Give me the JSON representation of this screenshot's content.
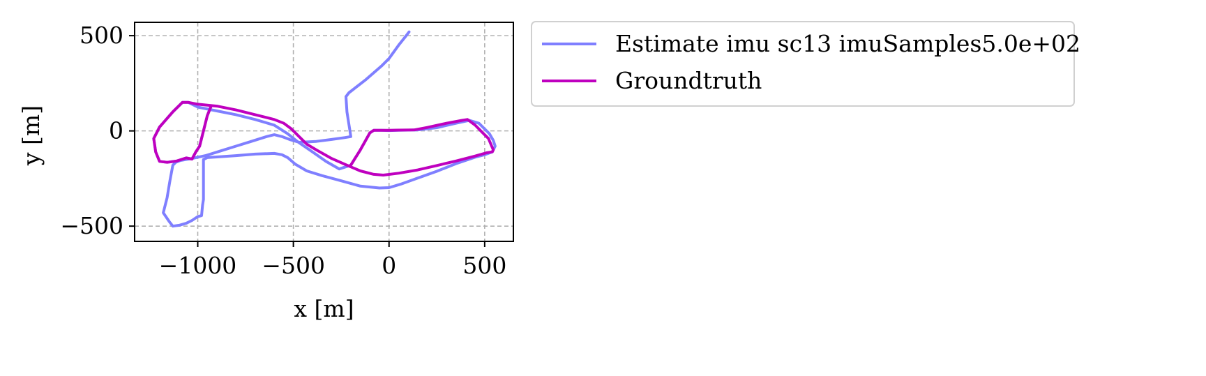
{
  "chart_data": {
    "type": "line",
    "title": "",
    "xlabel": "x [m]",
    "ylabel": "y [m]",
    "xlim": [
      -1330,
      650
    ],
    "ylim": [
      -580,
      570
    ],
    "xticks": [
      -1000,
      -500,
      0,
      500
    ],
    "xtick_labels": [
      "−1000",
      "−500",
      "0",
      "500"
    ],
    "yticks": [
      -500,
      0,
      500
    ],
    "ytick_labels": [
      "−500",
      "0",
      "500"
    ],
    "grid": true,
    "legend_position": "outside-top-right",
    "series": [
      {
        "name": "Estimate imu sc13 imuSamples5.0e+02",
        "color": "#7f7fff",
        "points": [
          [
            105,
            520
          ],
          [
            90,
            500
          ],
          [
            50,
            450
          ],
          [
            0,
            380
          ],
          [
            -40,
            340
          ],
          [
            -120,
            270
          ],
          [
            -210,
            200
          ],
          [
            -225,
            180
          ],
          [
            -220,
            100
          ],
          [
            -205,
            5
          ],
          [
            -200,
            -30
          ],
          [
            -230,
            -35
          ],
          [
            -300,
            -45
          ],
          [
            -380,
            -55
          ],
          [
            -470,
            -60
          ],
          [
            -520,
            -45
          ],
          [
            -560,
            -30
          ],
          [
            -600,
            -20
          ],
          [
            -640,
            -30
          ],
          [
            -720,
            -55
          ],
          [
            -800,
            -80
          ],
          [
            -880,
            -105
          ],
          [
            -960,
            -130
          ],
          [
            -1030,
            -145
          ],
          [
            -1090,
            -155
          ],
          [
            -1115,
            -165
          ],
          [
            -1130,
            -180
          ],
          [
            -1145,
            -260
          ],
          [
            -1160,
            -350
          ],
          [
            -1180,
            -430
          ],
          [
            -1150,
            -475
          ],
          [
            -1130,
            -500
          ],
          [
            -1095,
            -495
          ],
          [
            -1060,
            -485
          ],
          [
            -1030,
            -470
          ],
          [
            -1000,
            -450
          ],
          [
            -980,
            -445
          ],
          [
            -975,
            -390
          ],
          [
            -970,
            -360
          ],
          [
            -970,
            -240
          ],
          [
            -970,
            -150
          ],
          [
            -950,
            -140
          ],
          [
            -900,
            -137
          ],
          [
            -800,
            -130
          ],
          [
            -700,
            -122
          ],
          [
            -600,
            -118
          ],
          [
            -560,
            -125
          ],
          [
            -530,
            -140
          ],
          [
            -490,
            -175
          ],
          [
            -430,
            -210
          ],
          [
            -350,
            -235
          ],
          [
            -250,
            -262
          ],
          [
            -150,
            -290
          ],
          [
            -50,
            -300
          ],
          [
            0,
            -298
          ],
          [
            60,
            -280
          ],
          [
            150,
            -248
          ],
          [
            250,
            -212
          ],
          [
            350,
            -172
          ],
          [
            450,
            -138
          ],
          [
            500,
            -125
          ],
          [
            540,
            -110
          ],
          [
            555,
            -80
          ],
          [
            545,
            -50
          ],
          [
            525,
            -15
          ],
          [
            470,
            40
          ],
          [
            420,
            55
          ],
          [
            350,
            40
          ],
          [
            250,
            17
          ],
          [
            150,
            5
          ],
          [
            50,
            3
          ],
          [
            0,
            2
          ],
          [
            -40,
            3
          ],
          [
            -80,
            3
          ],
          [
            -100,
            -10
          ],
          [
            -150,
            -100
          ],
          [
            -200,
            -180
          ],
          [
            -260,
            -200
          ],
          [
            -330,
            -160
          ],
          [
            -400,
            -110
          ],
          [
            -480,
            -55
          ],
          [
            -530,
            -15
          ],
          [
            -600,
            30
          ],
          [
            -700,
            60
          ],
          [
            -800,
            85
          ],
          [
            -900,
            105
          ],
          [
            -1000,
            125
          ],
          [
            -1050,
            150
          ],
          [
            -1080,
            150
          ],
          [
            -1130,
            100
          ],
          [
            -1200,
            20
          ],
          [
            -1230,
            -40
          ],
          [
            -1220,
            -110
          ],
          [
            -1200,
            -160
          ],
          [
            -1160,
            -165
          ],
          [
            -1110,
            -158
          ],
          [
            -1060,
            -142
          ],
          [
            -1030,
            -148
          ],
          [
            -1010,
            -110
          ],
          [
            -990,
            -80
          ],
          [
            -970,
            0
          ],
          [
            -950,
            80
          ],
          [
            -930,
            130
          ]
        ]
      },
      {
        "name": "Groundtruth",
        "color": "#bf00bf",
        "points": [
          [
            -930,
            130
          ],
          [
            -950,
            80
          ],
          [
            -970,
            0
          ],
          [
            -990,
            -80
          ],
          [
            -1010,
            -110
          ],
          [
            -1030,
            -148
          ],
          [
            -1060,
            -142
          ],
          [
            -1110,
            -158
          ],
          [
            -1160,
            -165
          ],
          [
            -1200,
            -160
          ],
          [
            -1220,
            -110
          ],
          [
            -1230,
            -40
          ],
          [
            -1200,
            20
          ],
          [
            -1130,
            100
          ],
          [
            -1080,
            150
          ],
          [
            -1050,
            150
          ],
          [
            -1000,
            140
          ],
          [
            -900,
            130
          ],
          [
            -800,
            110
          ],
          [
            -700,
            85
          ],
          [
            -600,
            60
          ],
          [
            -550,
            40
          ],
          [
            -510,
            10
          ],
          [
            -470,
            -30
          ],
          [
            -430,
            -70
          ],
          [
            -380,
            -100
          ],
          [
            -300,
            -145
          ],
          [
            -220,
            -180
          ],
          [
            -150,
            -210
          ],
          [
            -80,
            -228
          ],
          [
            -30,
            -232
          ],
          [
            50,
            -222
          ],
          [
            150,
            -205
          ],
          [
            250,
            -182
          ],
          [
            350,
            -158
          ],
          [
            450,
            -132
          ],
          [
            510,
            -115
          ],
          [
            540,
            -110
          ],
          [
            545,
            -100
          ],
          [
            520,
            -40
          ],
          [
            490,
            -10
          ],
          [
            450,
            30
          ],
          [
            410,
            60
          ],
          [
            380,
            55
          ],
          [
            300,
            40
          ],
          [
            200,
            18
          ],
          [
            130,
            5
          ],
          [
            50,
            4
          ],
          [
            0,
            3
          ],
          [
            -40,
            3
          ],
          [
            -80,
            3
          ],
          [
            -100,
            -10
          ],
          [
            -150,
            -100
          ],
          [
            -200,
            -180
          ]
        ]
      }
    ]
  }
}
